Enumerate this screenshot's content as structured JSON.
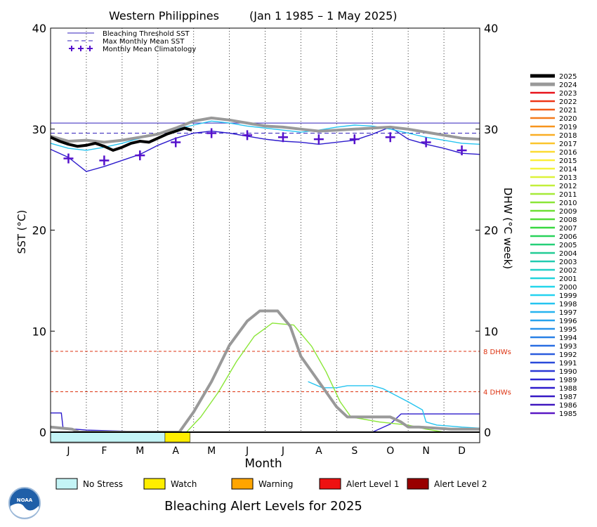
{
  "chart_data": {
    "type": "line",
    "title_location": "Western Philippines",
    "title_range": "(Jan 1 1985 – 1 May 2025)",
    "xlabel": "Month",
    "ylabel_left": "SST (°C)",
    "ylabel_right": "DHW (°C week)",
    "months": [
      "J",
      "F",
      "M",
      "A",
      "M",
      "J",
      "J",
      "A",
      "S",
      "O",
      "N",
      "D"
    ],
    "ylim": [
      0,
      40
    ],
    "yticks": [
      0,
      10,
      20,
      30,
      40
    ],
    "bleaching_threshold": 30.6,
    "max_monthly_mean": 29.6,
    "reference_lines": [
      {
        "value": 8,
        "label": "8 DHWs"
      },
      {
        "value": 4,
        "label": "4 DHWs"
      }
    ],
    "legend_top": [
      {
        "key": "threshold",
        "label": "Bleaching Threshold SST"
      },
      {
        "key": "mmm",
        "label": "Max Monthly Mean SST"
      },
      {
        "key": "clim",
        "label": "Monthly Mean Climatology"
      }
    ],
    "climatology": [
      {
        "x": 0.5,
        "y": 27.1
      },
      {
        "x": 1.5,
        "y": 26.9
      },
      {
        "x": 2.5,
        "y": 27.4
      },
      {
        "x": 3.5,
        "y": 28.7
      },
      {
        "x": 4.5,
        "y": 29.6
      },
      {
        "x": 5.5,
        "y": 29.4
      },
      {
        "x": 6.5,
        "y": 29.2
      },
      {
        "x": 7.5,
        "y": 29.0
      },
      {
        "x": 8.5,
        "y": 29.0
      },
      {
        "x": 9.5,
        "y": 29.2
      },
      {
        "x": 10.5,
        "y": 28.7
      },
      {
        "x": 11.5,
        "y": 27.9
      }
    ],
    "years": [
      "2025",
      "2024",
      "2023",
      "2022",
      "2021",
      "2020",
      "2019",
      "2018",
      "2017",
      "2016",
      "2015",
      "2014",
      "2013",
      "2012",
      "2011",
      "2010",
      "2009",
      "2008",
      "2007",
      "2006",
      "2005",
      "2004",
      "2003",
      "2002",
      "2001",
      "2000",
      "1999",
      "1998",
      "1997",
      "1996",
      "1995",
      "1994",
      "1993",
      "1992",
      "1991",
      "1990",
      "1989",
      "1988",
      "1987",
      "1986",
      "1985"
    ],
    "year_colors": [
      "#000000",
      "#999999",
      "#e8141c",
      "#ee3718",
      "#f25a17",
      "#f47a1a",
      "#f7941d",
      "#f9ad24",
      "#fbc52c",
      "#fcdb33",
      "#fcef3a",
      "#f2f33c",
      "#ddf33a",
      "#c2ef3a",
      "#a6ea38",
      "#8ae637",
      "#6ee035",
      "#52dc38",
      "#38d840",
      "#29d35a",
      "#25d078",
      "#22cc95",
      "#22cbb0",
      "#22cfc7",
      "#22d4dc",
      "#23d6ea",
      "#24d2f0",
      "#25c4f0",
      "#26b4ef",
      "#27a3ed",
      "#2892ea",
      "#2880e6",
      "#296ee2",
      "#2a5cde",
      "#2a4ada",
      "#2b38d6",
      "#2c27d2",
      "#2d1bcc",
      "#3618c5",
      "#4018bf",
      "#5a18c4"
    ],
    "sst_series": [
      {
        "year": "2025",
        "points": [
          [
            0,
            29.2
          ],
          [
            0.25,
            28.8
          ],
          [
            0.5,
            28.5
          ],
          [
            0.75,
            28.3
          ],
          [
            1.0,
            28.4
          ],
          [
            1.25,
            28.6
          ],
          [
            1.5,
            28.3
          ],
          [
            1.75,
            27.9
          ],
          [
            2.0,
            28.2
          ],
          [
            2.25,
            28.6
          ],
          [
            2.5,
            28.8
          ],
          [
            2.75,
            28.7
          ],
          [
            3.0,
            29.1
          ],
          [
            3.25,
            29.5
          ],
          [
            3.5,
            29.8
          ],
          [
            3.75,
            30.1
          ],
          [
            3.95,
            29.9
          ]
        ]
      },
      {
        "year": "2024",
        "points": [
          [
            0,
            29.3
          ],
          [
            0.5,
            28.8
          ],
          [
            1.0,
            28.9
          ],
          [
            1.5,
            28.7
          ],
          [
            2.0,
            28.9
          ],
          [
            2.5,
            29.2
          ],
          [
            3.0,
            29.5
          ],
          [
            3.5,
            30.1
          ],
          [
            4.0,
            30.8
          ],
          [
            4.5,
            31.1
          ],
          [
            5.0,
            30.9
          ],
          [
            5.5,
            30.6
          ],
          [
            6.0,
            30.3
          ],
          [
            6.5,
            30.2
          ],
          [
            7.0,
            30.0
          ],
          [
            7.5,
            29.8
          ],
          [
            8.0,
            29.9
          ],
          [
            8.5,
            30.0
          ],
          [
            9.0,
            30.1
          ],
          [
            9.5,
            30.2
          ],
          [
            10.0,
            30.0
          ],
          [
            10.5,
            29.7
          ],
          [
            11.0,
            29.4
          ],
          [
            11.5,
            29.1
          ],
          [
            12.0,
            29.0
          ]
        ]
      },
      {
        "year": "1998",
        "points": [
          [
            0,
            28.6
          ],
          [
            0.5,
            28.1
          ],
          [
            1.0,
            27.9
          ],
          [
            1.5,
            28.2
          ],
          [
            2.0,
            28.6
          ],
          [
            2.5,
            29.1
          ],
          [
            3.0,
            29.6
          ],
          [
            3.5,
            30.0
          ],
          [
            4.0,
            30.4
          ],
          [
            4.5,
            30.8
          ],
          [
            5.0,
            30.6
          ],
          [
            5.5,
            30.3
          ],
          [
            6.0,
            30.1
          ],
          [
            6.5,
            29.9
          ],
          [
            7.0,
            29.7
          ],
          [
            7.5,
            29.9
          ],
          [
            8.0,
            30.2
          ],
          [
            8.5,
            30.4
          ],
          [
            9.0,
            30.3
          ],
          [
            9.5,
            30.0
          ],
          [
            10.0,
            29.6
          ],
          [
            10.5,
            29.2
          ],
          [
            11.0,
            28.9
          ],
          [
            11.5,
            28.6
          ],
          [
            12.0,
            28.5
          ]
        ]
      },
      {
        "year": "1988",
        "points": [
          [
            0,
            28.0
          ],
          [
            0.5,
            27.2
          ],
          [
            1.0,
            25.8
          ],
          [
            1.5,
            26.3
          ],
          [
            2.0,
            26.9
          ],
          [
            2.5,
            27.5
          ],
          [
            3.0,
            28.4
          ],
          [
            3.5,
            29.1
          ],
          [
            4.0,
            29.6
          ],
          [
            4.5,
            29.8
          ],
          [
            5.0,
            29.6
          ],
          [
            5.5,
            29.3
          ],
          [
            6.0,
            29.0
          ],
          [
            6.5,
            28.8
          ],
          [
            7.0,
            28.7
          ],
          [
            7.5,
            28.5
          ],
          [
            8.0,
            28.7
          ],
          [
            8.5,
            28.9
          ],
          [
            9.0,
            29.5
          ],
          [
            9.5,
            30.2
          ],
          [
            10.0,
            29.0
          ],
          [
            10.5,
            28.5
          ],
          [
            11.0,
            28.1
          ],
          [
            11.5,
            27.6
          ],
          [
            12.0,
            27.5
          ]
        ]
      }
    ],
    "dhw_series": [
      {
        "year": "2024",
        "points": [
          [
            0,
            0.5
          ],
          [
            0.6,
            0.3
          ],
          [
            0.8,
            0
          ],
          [
            3.6,
            0
          ],
          [
            4.0,
            2.0
          ],
          [
            4.5,
            5.0
          ],
          [
            5.0,
            8.6
          ],
          [
            5.5,
            11.0
          ],
          [
            5.85,
            12.0
          ],
          [
            6.35,
            12.0
          ],
          [
            6.7,
            10.5
          ],
          [
            7.0,
            7.5
          ],
          [
            7.5,
            5.0
          ],
          [
            8.0,
            2.5
          ],
          [
            8.3,
            1.5
          ],
          [
            9.0,
            1.5
          ],
          [
            9.5,
            1.5
          ],
          [
            9.8,
            1.0
          ],
          [
            10.0,
            0.5
          ],
          [
            10.3,
            0.5
          ],
          [
            11.2,
            0.3
          ],
          [
            12,
            0.3
          ]
        ]
      },
      {
        "year": "2010",
        "points": [
          [
            3.8,
            0
          ],
          [
            4.2,
            1.5
          ],
          [
            4.7,
            4.0
          ],
          [
            5.2,
            7.0
          ],
          [
            5.7,
            9.5
          ],
          [
            6.2,
            10.8
          ],
          [
            6.8,
            10.6
          ],
          [
            7.3,
            8.5
          ],
          [
            7.7,
            6.0
          ],
          [
            8.1,
            3.0
          ],
          [
            8.4,
            1.5
          ],
          [
            9.2,
            1.0
          ],
          [
            10.0,
            0.7
          ],
          [
            10.5,
            0.3
          ],
          [
            11.0,
            0
          ]
        ]
      },
      {
        "year": "1998",
        "points": [
          [
            7.2,
            5.0
          ],
          [
            7.6,
            4.4
          ],
          [
            8.0,
            4.4
          ],
          [
            8.3,
            4.6
          ],
          [
            9.0,
            4.6
          ],
          [
            9.3,
            4.3
          ],
          [
            10.0,
            3.0
          ],
          [
            10.4,
            2.2
          ],
          [
            10.5,
            1.0
          ],
          [
            10.8,
            0.7
          ],
          [
            11.5,
            0.5
          ],
          [
            12,
            0.4
          ]
        ]
      },
      {
        "year": "1988",
        "points": [
          [
            0,
            1.9
          ],
          [
            0.3,
            1.9
          ],
          [
            0.35,
            0.4
          ],
          [
            1.0,
            0.2
          ],
          [
            3.0,
            0
          ],
          [
            9.0,
            0
          ],
          [
            9.5,
            0.8
          ],
          [
            9.8,
            1.8
          ],
          [
            12,
            1.8
          ]
        ]
      }
    ],
    "x_start_marker": "0",
    "left_yticks_label": [
      "0",
      "10",
      "20",
      "30",
      "40"
    ],
    "right_yticks_label": [
      "0",
      "10",
      "20",
      "30",
      "40"
    ]
  },
  "alert_bar": [
    {
      "from": 0,
      "to": 3.2,
      "level": "no_stress"
    },
    {
      "from": 3.2,
      "to": 3.9,
      "level": "watch"
    }
  ],
  "alert_legend": [
    {
      "key": "no_stress",
      "label": "No Stress",
      "color": "#c4f4f6"
    },
    {
      "key": "watch",
      "label": "Watch",
      "color": "#ffee00"
    },
    {
      "key": "warning",
      "label": "Warning",
      "color": "#ffa500"
    },
    {
      "key": "alert1",
      "label": "Alert Level 1",
      "color": "#ee1111"
    },
    {
      "key": "alert2",
      "label": "Alert Level 2",
      "color": "#990000"
    }
  ],
  "footer_title": "Bleaching Alert Levels for 2025",
  "logo": {
    "icon": "noaa-logo-icon",
    "text": "NOAA"
  },
  "colors": {
    "threshold": "#3322bb",
    "mmm": "#3322bb",
    "clim": "#5511cc",
    "ref": "#dd3311"
  }
}
